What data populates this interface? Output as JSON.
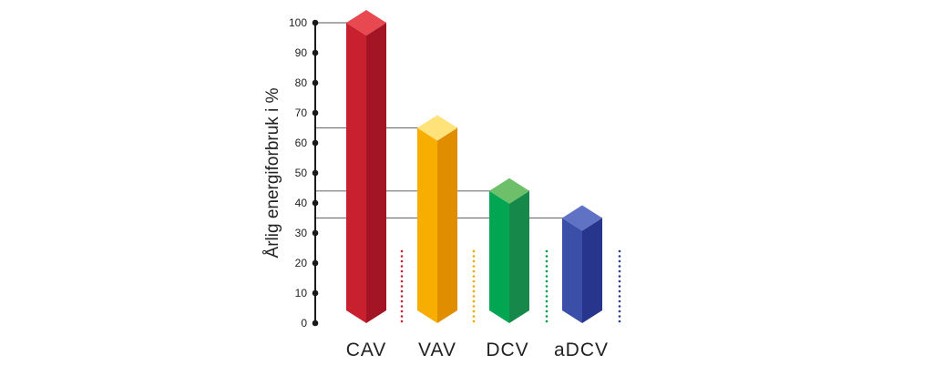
{
  "chart_data": {
    "type": "bar",
    "title": "",
    "xlabel": "",
    "ylabel": "Årlig energiforbruk i %",
    "categories": [
      "CAV",
      "VAV",
      "DCV",
      "aDCV"
    ],
    "values": [
      100,
      65,
      44,
      35
    ],
    "ylim": [
      0,
      100
    ],
    "yticks": [
      "0",
      "10",
      "20",
      "30",
      "40",
      "50",
      "60",
      "70",
      "80",
      "90",
      "100"
    ],
    "grid": false,
    "bar_colors": [
      {
        "front": "#c8202f",
        "side": "#a31525",
        "top": "#e84850",
        "dots": "#c8202f"
      },
      {
        "front": "#f7ae00",
        "side": "#e08e00",
        "top": "#ffe27a",
        "dots": "#f0a800"
      },
      {
        "front": "#00a651",
        "side": "#16884a",
        "top": "#6dbf6a",
        "dots": "#009a50"
      },
      {
        "front": "#3b4fa8",
        "side": "#27358c",
        "top": "#5f72c4",
        "dots": "#2c3a92"
      }
    ],
    "axis_color": "#1a1a1a"
  }
}
